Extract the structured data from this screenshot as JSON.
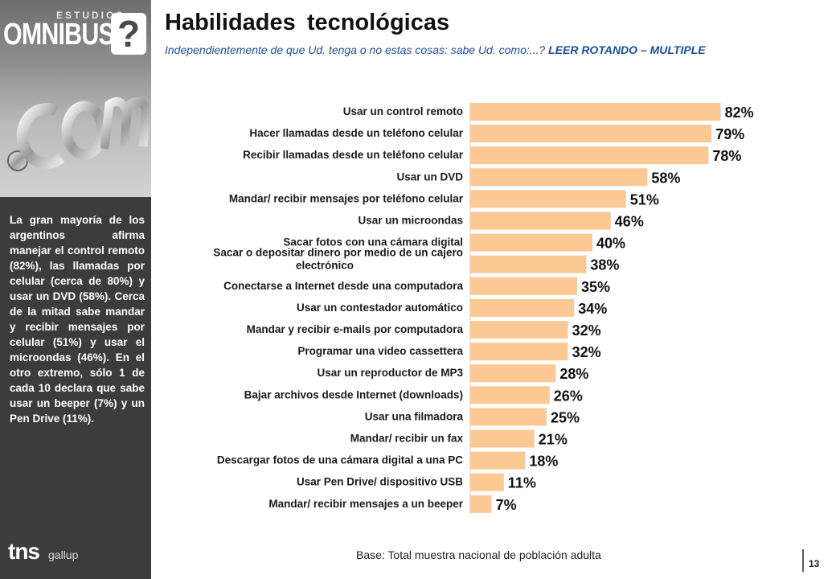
{
  "logo": {
    "estudios": "ESTUDIOS",
    "omnibus": "OMNIBUS",
    "mark": "?"
  },
  "title": "Habilidades  tecnológicas",
  "subtitle": {
    "text": "Independientemente de que Ud. tenga o no estas cosas: sabe Ud. como:...? ",
    "emphasis": "LEER ROTANDO – MULTIPLE"
  },
  "sidebar": {
    "text": "La gran mayoría de los argentinos afirma manejar el control remoto (82%), las llamadas por celular (cerca de 80%) y usar un DVD (58%). Cerca de la mitad sabe mandar y recibir mensajes por celular (51%) y usar el microondas (46%). En el otro extremo, sólo 1 de cada 10 declara que sabe usar un beeper (7%) y un Pen Drive (11%)."
  },
  "brand": {
    "tns": "tns",
    "gallup": "gallup"
  },
  "chart_data": {
    "type": "bar",
    "orientation": "horizontal",
    "categories": [
      [
        "Usar un control remoto"
      ],
      [
        "Hacer llamadas desde un teléfono celular"
      ],
      [
        "Recibir llamadas desde un teléfono celular"
      ],
      [
        "Usar un DVD"
      ],
      [
        "Mandar/ recibir mensajes por teléfono celular"
      ],
      [
        "Usar un microondas"
      ],
      [
        "Sacar fotos con una cámara digital"
      ],
      [
        "Sacar o depositar dinero por medio de un cajero",
        "electrónico"
      ],
      [
        "Conectarse a Internet desde una computadora"
      ],
      [
        "Usar un contestador automático"
      ],
      [
        "Mandar y recibir e-mails por computadora"
      ],
      [
        "Programar una video cassettera"
      ],
      [
        "Usar un reproductor de MP3"
      ],
      [
        "Bajar archivos desde Internet (downloads)"
      ],
      [
        "Usar una filmadora"
      ],
      [
        "Mandar/ recibir un fax"
      ],
      [
        "Descargar fotos de una cámara digital a una PC"
      ],
      [
        "Usar Pen Drive/ dispositivo USB"
      ],
      [
        "Mandar/ recibir mensajes a un beeper"
      ]
    ],
    "values": [
      82,
      79,
      78,
      58,
      51,
      46,
      40,
      38,
      35,
      34,
      32,
      32,
      28,
      26,
      25,
      21,
      18,
      11,
      7
    ],
    "value_suffix": "%",
    "bar_color": "#fcc894",
    "xlim": [
      0,
      100
    ],
    "grid": false,
    "legend": "none"
  },
  "footer": {
    "base": "Base: Total muestra nacional de población adulta",
    "page_number": "13"
  }
}
